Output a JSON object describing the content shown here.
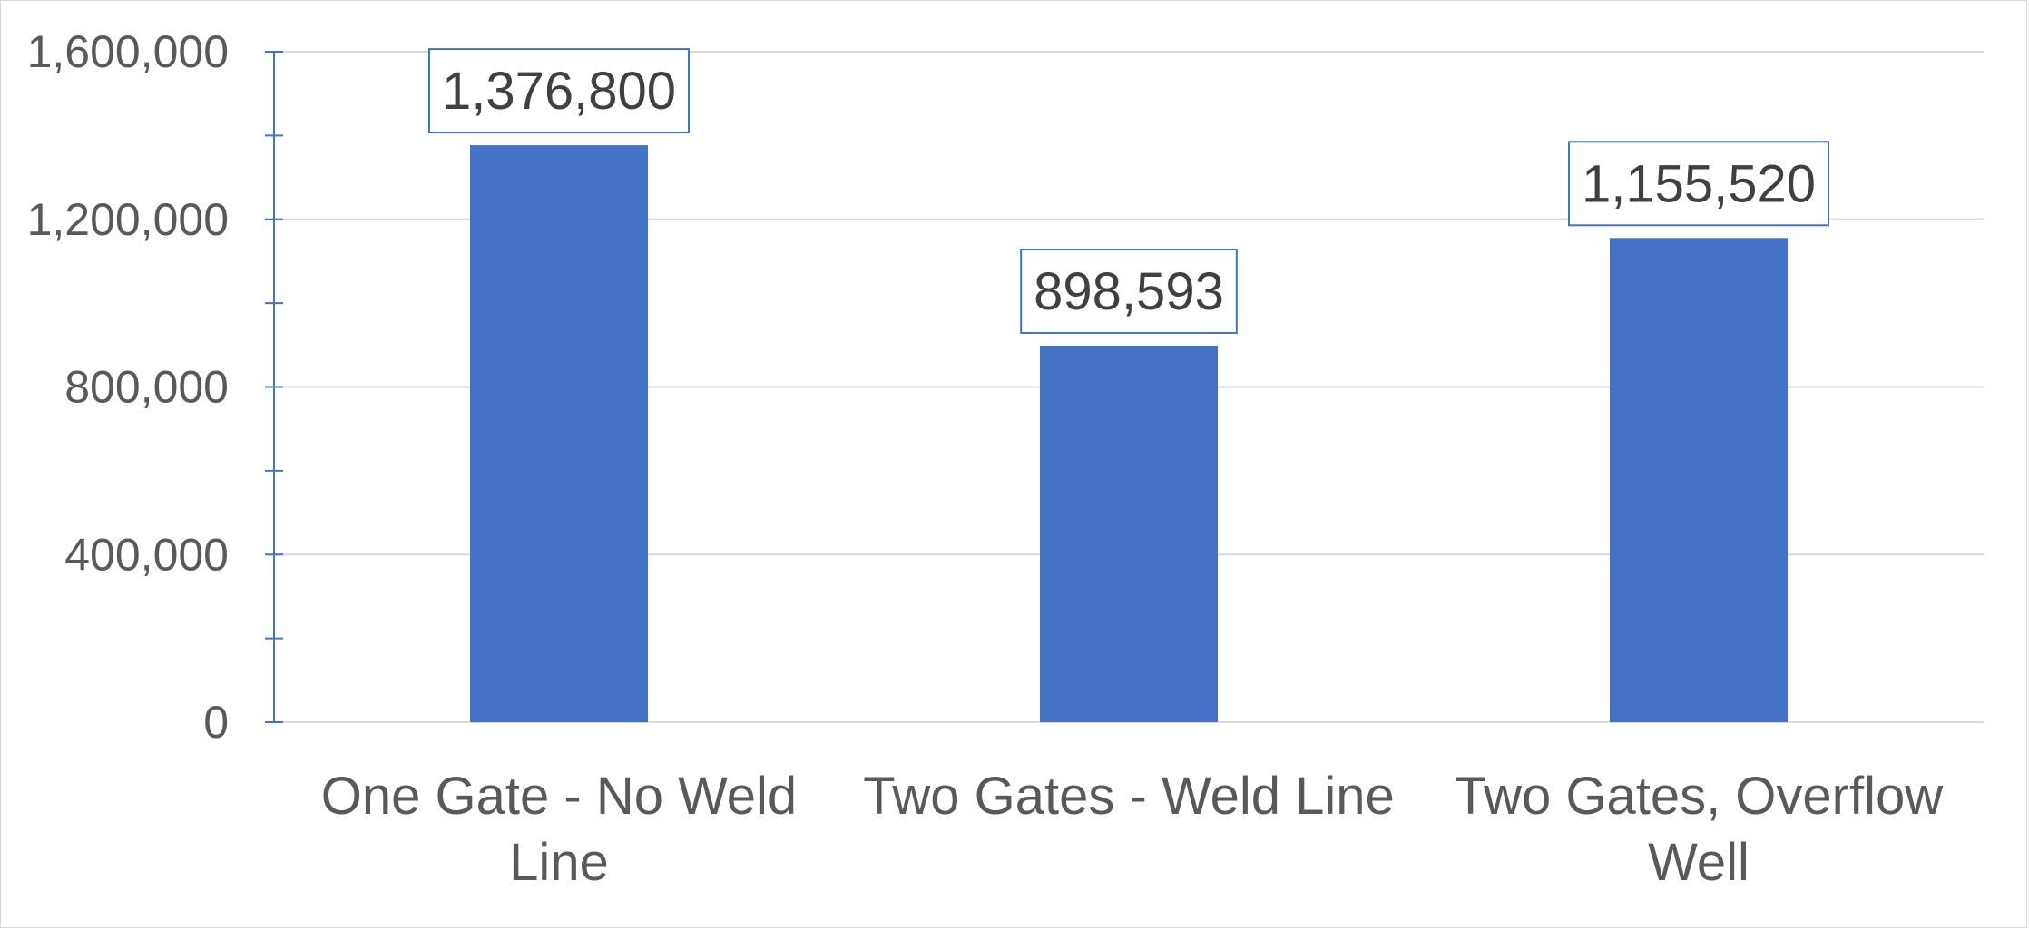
{
  "chart_data": {
    "type": "bar",
    "categories": [
      "One Gate - No Weld Line",
      "Two Gates - Weld Line",
      "Two Gates, Overflow Well"
    ],
    "category_lines": [
      [
        "One Gate - No Weld",
        "Line"
      ],
      [
        "Two Gates - Weld Line"
      ],
      [
        "Two Gates, Overflow",
        "Well"
      ]
    ],
    "values": [
      1376800,
      898593,
      1155520
    ],
    "data_labels": [
      "1,376,800",
      "898,593",
      "1,155,520"
    ],
    "y_ticks": [
      0,
      400000,
      800000,
      1200000,
      1600000
    ],
    "y_tick_labels": [
      "0",
      "400,000",
      "800,000",
      "1,200,000",
      "1,600,000"
    ],
    "ylim": [
      0,
      1600000
    ],
    "title": "",
    "xlabel": "",
    "ylabel": "",
    "grid": true,
    "legend": "none",
    "colors": {
      "bar": "#4472C4",
      "axis": "#4472C4",
      "grid": "#D9D9D9",
      "label_box_border": "#4472C4",
      "tick_text": "#595959",
      "data_label_text": "#404040"
    }
  }
}
